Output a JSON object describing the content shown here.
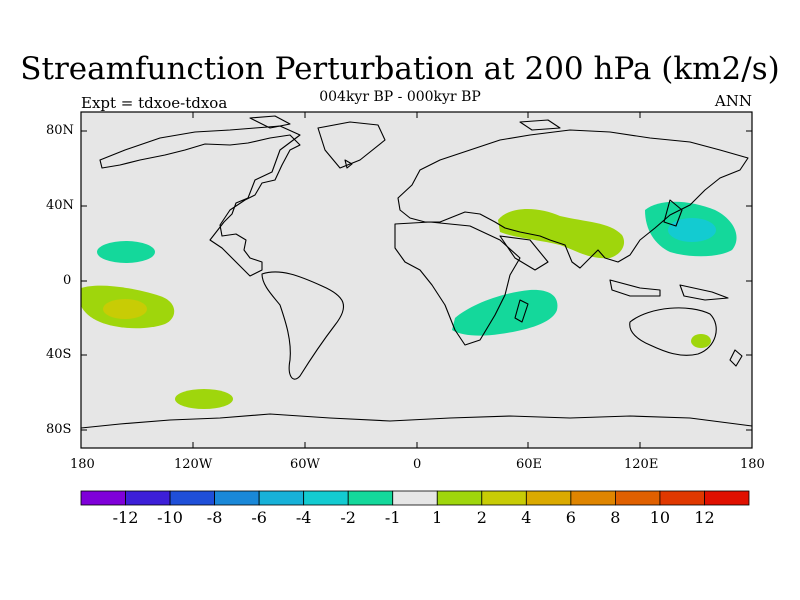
{
  "header": {
    "title": "Streamfunction Perturbation at 200 hPa (km2/s)",
    "subtitle": "004kyr BP - 000kyr BP",
    "experiment": "Expt = tdxoe-tdxoa",
    "season": "ANN"
  },
  "axes": {
    "lat_labels": [
      "80N",
      "40N",
      "0",
      "40S",
      "80S"
    ],
    "lon_labels": [
      "180",
      "120W",
      "60W",
      "0",
      "60E",
      "120E",
      "180"
    ]
  },
  "colorbar": {
    "colors": [
      "#7f00d9",
      "#3d1fd8",
      "#1f4fd8",
      "#1a88d8",
      "#17b1d8",
      "#13cbd1",
      "#14d89b",
      "#e6e6e6",
      "#9fd60c",
      "#c8cc05",
      "#dbaa00",
      "#df8500",
      "#e06000",
      "#e03800",
      "#e01000"
    ],
    "labels": [
      "-12",
      "-10",
      "-8",
      "-6",
      "-4",
      "-2",
      "-1",
      "1",
      "2",
      "4",
      "6",
      "8",
      "10",
      "12"
    ]
  },
  "colors": {
    "background": "#e6e6e6",
    "coast": "#000000"
  }
}
